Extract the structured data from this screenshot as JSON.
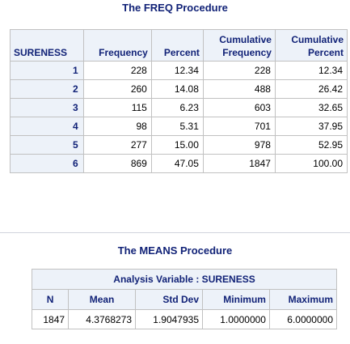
{
  "freq": {
    "title": "The FREQ Procedure",
    "columns": {
      "var": "SURENESS",
      "frequency": "Frequency",
      "percent": "Percent",
      "cum_frequency": [
        "Cumulative",
        "Frequency"
      ],
      "cum_percent": [
        "Cumulative",
        "Percent"
      ]
    },
    "rows": [
      {
        "value": "1",
        "frequency": "228",
        "percent": "12.34",
        "cum_frequency": "228",
        "cum_percent": "12.34"
      },
      {
        "value": "2",
        "frequency": "260",
        "percent": "14.08",
        "cum_frequency": "488",
        "cum_percent": "26.42"
      },
      {
        "value": "3",
        "frequency": "115",
        "percent": "6.23",
        "cum_frequency": "603",
        "cum_percent": "32.65"
      },
      {
        "value": "4",
        "frequency": "98",
        "percent": "5.31",
        "cum_frequency": "701",
        "cum_percent": "37.95"
      },
      {
        "value": "5",
        "frequency": "277",
        "percent": "15.00",
        "cum_frequency": "978",
        "cum_percent": "52.95"
      },
      {
        "value": "6",
        "frequency": "869",
        "percent": "47.05",
        "cum_frequency": "1847",
        "cum_percent": "100.00"
      }
    ]
  },
  "means": {
    "title": "The MEANS Procedure",
    "spanner": "Analysis Variable : SURENESS",
    "columns": {
      "n": "N",
      "mean": "Mean",
      "std_dev": "Std Dev",
      "minimum": "Minimum",
      "maximum": "Maximum"
    },
    "values": {
      "n": "1847",
      "mean": "4.3768273",
      "std_dev": "1.9047935",
      "minimum": "1.0000000",
      "maximum": "6.0000000"
    }
  },
  "colors": {
    "header_text": "#112277",
    "header_bg": "#edf2f9",
    "border": "#c1c1c1"
  }
}
